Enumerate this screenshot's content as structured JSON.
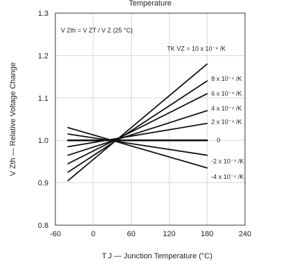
{
  "chart_data": {
    "type": "line",
    "title": "Temperature",
    "xlabel": "T J — Junction Temperature (°C)",
    "ylabel": "V Zth — Relative Voltage Change",
    "xlim": [
      -60,
      240
    ],
    "ylim": [
      0.8,
      1.3
    ],
    "x_ticks": [
      -60,
      0,
      60,
      120,
      180,
      240
    ],
    "y_ticks": [
      0.8,
      0.9,
      1.0,
      1.1,
      1.2,
      1.3
    ],
    "x_tick_labels": [
      "-60",
      "0",
      "60",
      "120",
      "180",
      "240"
    ],
    "y_tick_labels": [
      "0.8",
      "0.9",
      "1.0",
      "1.1",
      "1.2",
      "1.3"
    ],
    "grid": true,
    "formula": "V Zth = V ZT / V Z (25 °C)",
    "series": [
      {
        "name": "TK VZ = 10 x 10⁻⁴ /K",
        "x": [
          -40,
          180
        ],
        "y": [
          0.905,
          1.18
        ]
      },
      {
        "name": "8 x 10⁻⁴ /K",
        "x": [
          -40,
          180
        ],
        "y": [
          0.925,
          1.14
        ]
      },
      {
        "name": "6 x 10⁻⁴ /K",
        "x": [
          -40,
          180
        ],
        "y": [
          0.945,
          1.11
        ]
      },
      {
        "name": "4 x 10⁻⁴ /K",
        "x": [
          -40,
          180
        ],
        "y": [
          0.965,
          1.07
        ]
      },
      {
        "name": "2 x 10⁻⁴ /K",
        "x": [
          -40,
          180
        ],
        "y": [
          0.985,
          1.04
        ]
      },
      {
        "name": "0",
        "x": [
          -40,
          180
        ],
        "y": [
          1.0,
          1.0
        ]
      },
      {
        "name": "-2 x 10⁻⁴ /K",
        "x": [
          -40,
          180
        ],
        "y": [
          1.015,
          0.965
        ]
      },
      {
        "name": "-4 x 10⁻⁴ /K",
        "x": [
          -40,
          180
        ],
        "y": [
          1.03,
          0.935
        ]
      }
    ],
    "colors": {
      "line": "#111111",
      "grid": "#cfcfcf",
      "frame": "#333333"
    }
  }
}
